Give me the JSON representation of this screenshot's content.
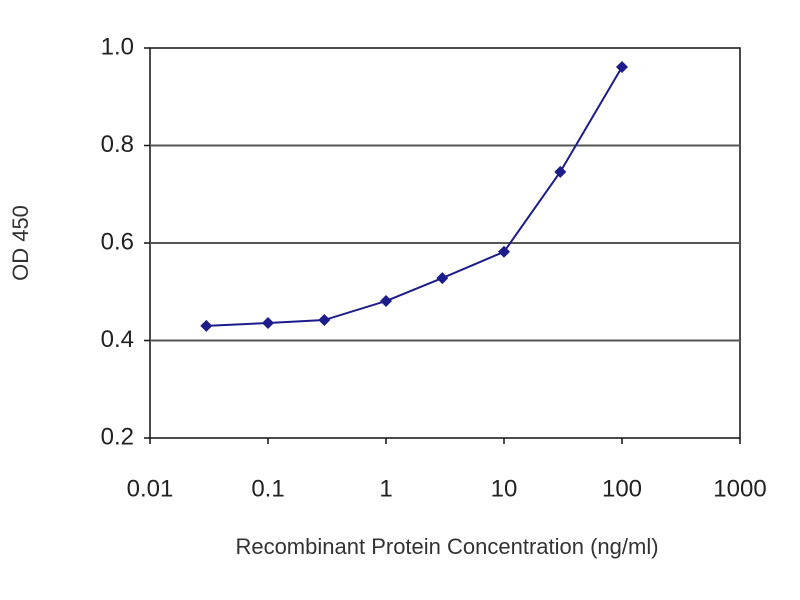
{
  "chart_data": {
    "type": "line",
    "x_label": "Recombinant Protein Concentration (ng/ml)",
    "y_label": "OD 450",
    "x": [
      0.03,
      0.1,
      0.3,
      1,
      3,
      10,
      30,
      100
    ],
    "series": [
      {
        "color": "#1c1c8a",
        "values": [
          0.43,
          0.436,
          0.442,
          0.481,
          0.528,
          0.582,
          0.746,
          0.961
        ]
      }
    ],
    "xscale": "log",
    "xlim": [
      0.01,
      1000
    ],
    "xticks": [
      0.01,
      0.1,
      1,
      10,
      100,
      1000
    ],
    "ylim": [
      0.2,
      1
    ],
    "yticks": [
      0.2,
      0.4,
      0.6,
      0.8,
      {
        "value": 1,
        "label": "1.0"
      }
    ],
    "grid": true
  }
}
